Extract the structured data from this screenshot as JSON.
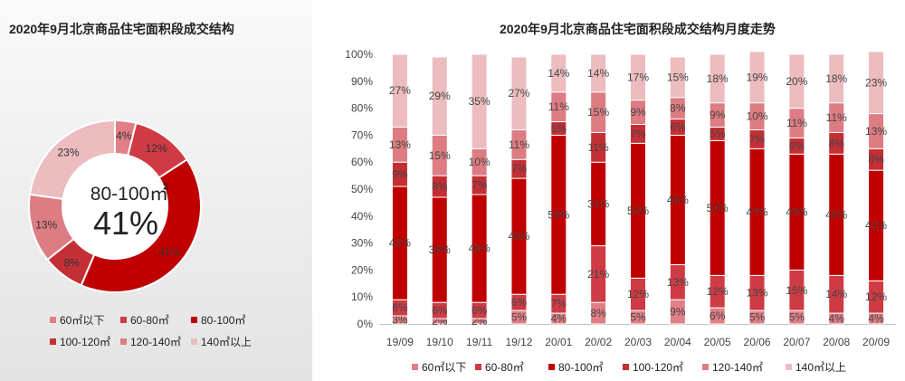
{
  "chart_data": [
    {
      "type": "pie",
      "style": "donut",
      "title": "2020年9月北京商品住宅面积段成交结构",
      "slices": [
        {
          "name": "60㎡以下",
          "value": 4,
          "label": "4%",
          "color": "#e07f86"
        },
        {
          "name": "60-80㎡",
          "value": 12,
          "label": "12%",
          "color": "#cf3b44"
        },
        {
          "name": "80-100㎡",
          "value": 41,
          "label": "41%",
          "color": "#c00000"
        },
        {
          "name": "100-120㎡",
          "value": 8,
          "label": "8%",
          "color": "#c42f35"
        },
        {
          "name": "120-140㎡",
          "value": 13,
          "label": "13%",
          "color": "#dd7c82"
        },
        {
          "name": "140㎡以上",
          "value": 23,
          "label": "23%",
          "color": "#ecbcbf"
        }
      ],
      "center_label": "80-100㎡",
      "center_value": "41%",
      "legend": [
        "60㎡以下",
        "60-80㎡",
        "80-100㎡",
        "100-120㎡",
        "120-140㎡",
        "140㎡以上"
      ]
    },
    {
      "type": "bar",
      "stacked": "percent",
      "title": "2020年9月北京商品住宅面积段成交结构月度走势",
      "categories": [
        "19/09",
        "19/10",
        "19/11",
        "19/12",
        "20/01",
        "20/02",
        "20/03",
        "20/04",
        "20/05",
        "20/06",
        "20/07",
        "20/08",
        "20/09"
      ],
      "series": [
        {
          "name": "60㎡以下",
          "color": "#e07f86",
          "values": [
            3,
            2,
            2,
            5,
            4,
            8,
            5,
            9,
            6,
            5,
            5,
            4,
            4
          ]
        },
        {
          "name": "60-80㎡",
          "color": "#cf3b44",
          "values": [
            6,
            6,
            6,
            6,
            7,
            21,
            12,
            13,
            12,
            13,
            15,
            14,
            12
          ]
        },
        {
          "name": "80-100㎡",
          "color": "#c00000",
          "values": [
            42,
            39,
            40,
            43,
            59,
            31,
            50,
            48,
            50,
            47,
            43,
            45,
            41
          ]
        },
        {
          "name": "100-120㎡",
          "color": "#c42f35",
          "values": [
            9,
            8,
            7,
            7,
            5,
            11,
            7,
            6,
            5,
            7,
            6,
            8,
            8
          ]
        },
        {
          "name": "120-140㎡",
          "color": "#dd7c82",
          "values": [
            13,
            15,
            10,
            11,
            11,
            15,
            9,
            8,
            9,
            10,
            11,
            11,
            13
          ]
        },
        {
          "name": "140㎡以上",
          "color": "#ecbcbf",
          "values": [
            27,
            29,
            35,
            27,
            14,
            14,
            17,
            15,
            18,
            19,
            20,
            18,
            23
          ]
        }
      ],
      "y_ticks": [
        "0%",
        "10%",
        "20%",
        "30%",
        "40%",
        "50%",
        "60%",
        "70%",
        "80%",
        "90%",
        "100%"
      ],
      "ylim": [
        0,
        100
      ],
      "legend": [
        "60㎡以下",
        "60-80㎡",
        "80-100㎡",
        "100-120㎡",
        "120-140㎡",
        "140㎡以上"
      ]
    }
  ]
}
